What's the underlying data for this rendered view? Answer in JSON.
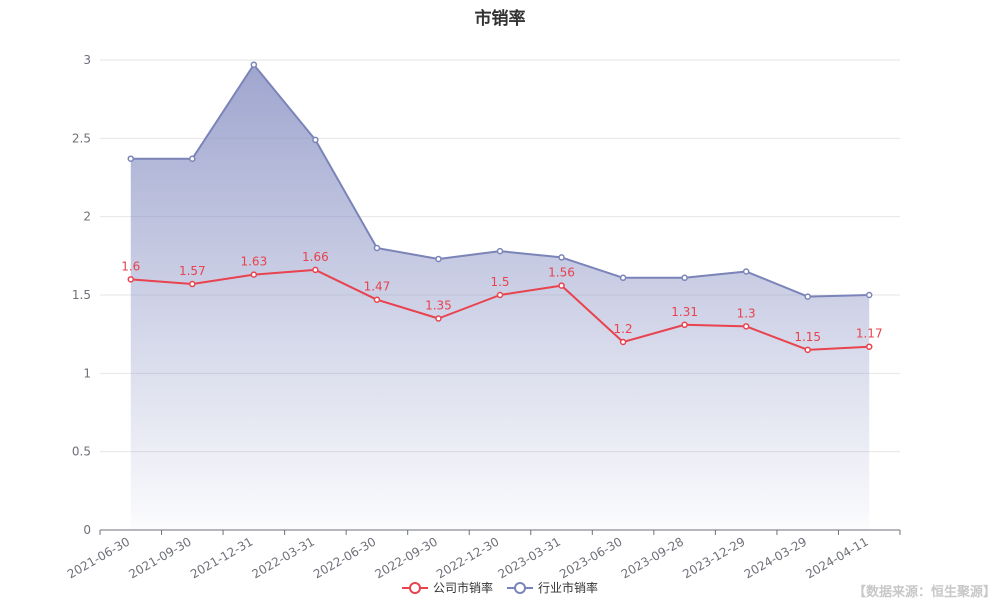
{
  "chart_data": {
    "type": "line",
    "title": "市销率",
    "categories": [
      "2021-06-30",
      "2021-09-30",
      "2021-12-31",
      "2022-03-31",
      "2022-06-30",
      "2022-09-30",
      "2022-12-30",
      "2023-03-31",
      "2023-06-30",
      "2023-09-28",
      "2023-12-29",
      "2024-03-29",
      "2024-04-11"
    ],
    "ylim": [
      0,
      3
    ],
    "yticks": [
      0,
      0.5,
      1,
      1.5,
      2,
      2.5,
      3
    ],
    "grid": true,
    "legend_position": "bottom",
    "series": [
      {
        "name": "公司市销率",
        "color": "#e8434e",
        "show_labels": true,
        "area": false,
        "values": [
          1.6,
          1.57,
          1.63,
          1.66,
          1.47,
          1.35,
          1.5,
          1.56,
          1.2,
          1.31,
          1.3,
          1.15,
          1.17
        ]
      },
      {
        "name": "行业市销率",
        "color": "#7b84b8",
        "show_labels": false,
        "area": true,
        "values": [
          2.37,
          2.37,
          2.97,
          2.49,
          1.8,
          1.73,
          1.78,
          1.74,
          1.61,
          1.61,
          1.65,
          1.49,
          1.5
        ]
      }
    ]
  },
  "source_note": "【数据来源：恒生聚源】"
}
